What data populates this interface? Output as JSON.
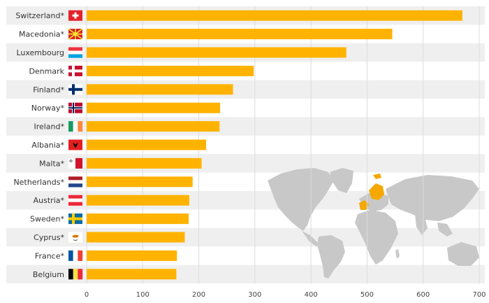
{
  "chart_data": {
    "type": "bar",
    "orientation": "horizontal",
    "categories": [
      "Switzerland*",
      "Macedonia*",
      "Luxembourg",
      "Denmark",
      "Finland*",
      "Norway*",
      "Ireland*",
      "Albania*",
      "Malta*",
      "Netherlands*",
      "Austria*",
      "Sweden*",
      "Cyprus*",
      "France*",
      "Belgium"
    ],
    "values": [
      670,
      545,
      463,
      298,
      261,
      238,
      237,
      213,
      205,
      189,
      183,
      182,
      175,
      161,
      160
    ],
    "xlim": [
      0,
      700
    ],
    "xticks": [
      0,
      100,
      200,
      300,
      400,
      500,
      600,
      700
    ],
    "grid": "vertical",
    "bar_color": "#FFB300",
    "highlight_color": "#F5A800",
    "map_color": "#C8C8C8",
    "flags": [
      "switzerland-flag-icon",
      "macedonia-flag-icon",
      "luxembourg-flag-icon",
      "denmark-flag-icon",
      "finland-flag-icon",
      "norway-flag-icon",
      "ireland-flag-icon",
      "albania-flag-icon",
      "malta-flag-icon",
      "netherlands-flag-icon",
      "austria-flag-icon",
      "sweden-flag-icon",
      "cyprus-flag-icon",
      "france-flag-icon",
      "belgium-flag-icon"
    ]
  }
}
